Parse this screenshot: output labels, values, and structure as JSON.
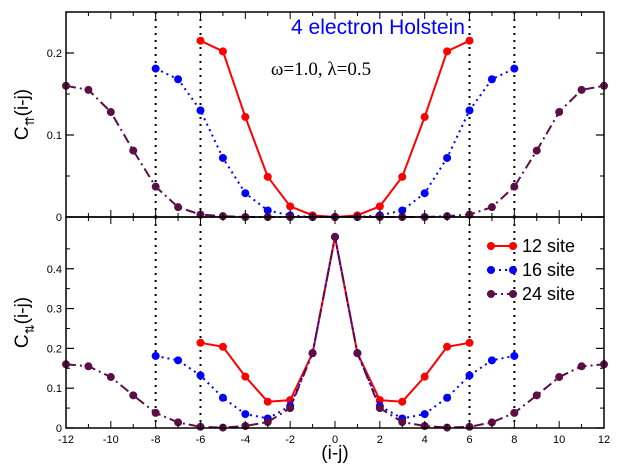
{
  "chart_data": [
    {
      "type": "line",
      "panel": "top",
      "title": "4 electron Holstein",
      "subtitle": "ω=1.0, λ=0.5",
      "ylabel": "C",
      "ylabel_sub": "⇈",
      "ylabel_arg": "(i-j)",
      "ylim": [
        0,
        0.25
      ],
      "xlim": [
        -12,
        12
      ],
      "yticks": [
        0,
        0.1,
        0.2
      ],
      "ytick_labels": [
        "0",
        "0.1",
        "0.2"
      ],
      "vlines": [
        -8,
        -6,
        6,
        8
      ],
      "series": [
        {
          "label": "12 site",
          "color": "#ff0000",
          "dash": "",
          "x": [
            -6,
            -5,
            -4,
            -3,
            -2,
            -1,
            0,
            1,
            2,
            3,
            4,
            5,
            6
          ],
          "y": [
            0.215,
            0.202,
            0.122,
            0.049,
            0.013,
            0.002,
            0.0,
            0.002,
            0.013,
            0.049,
            0.122,
            0.202,
            0.215
          ]
        },
        {
          "label": "16 site",
          "color": "#0000ff",
          "dash": "2 4",
          "x": [
            -8,
            -7,
            -6,
            -5,
            -4,
            -3,
            -2,
            -1,
            0,
            1,
            2,
            3,
            4,
            5,
            6,
            7,
            8
          ],
          "y": [
            0.181,
            0.168,
            0.13,
            0.072,
            0.029,
            0.008,
            0.002,
            0.0,
            0.0,
            0.0,
            0.002,
            0.008,
            0.029,
            0.072,
            0.13,
            0.168,
            0.181
          ]
        },
        {
          "label": "24 site",
          "color": "#5c0e46",
          "dash": "10 4 2 4",
          "x": [
            -12,
            -11,
            -10,
            -9,
            -8,
            -7,
            -6,
            -5,
            -4,
            -3,
            -2,
            -1,
            0,
            1,
            2,
            3,
            4,
            5,
            6,
            7,
            8,
            9,
            10,
            11,
            12
          ],
          "y": [
            0.16,
            0.155,
            0.128,
            0.081,
            0.037,
            0.012,
            0.003,
            0.001,
            0.0,
            0.0,
            0.0,
            0.0,
            0.0,
            0.0,
            0.0,
            0.0,
            0.0,
            0.001,
            0.003,
            0.012,
            0.037,
            0.081,
            0.128,
            0.155,
            0.16
          ]
        }
      ]
    },
    {
      "type": "line",
      "panel": "bottom",
      "ylabel": "C",
      "ylabel_sub": "⇅",
      "ylabel_arg": "(i-j)",
      "xlabel": "(i-j)",
      "ylim": [
        0,
        0.53
      ],
      "xlim": [
        -12,
        12
      ],
      "xticks": [
        -12,
        -10,
        -8,
        -6,
        -4,
        -2,
        0,
        2,
        4,
        6,
        8,
        10,
        12
      ],
      "xtick_labels": [
        "-12",
        "-10",
        "-8",
        "-6",
        "-4",
        "-2",
        "0",
        "2",
        "4",
        "6",
        "8",
        "10",
        "12"
      ],
      "yticks": [
        0,
        0.1,
        0.2,
        0.3,
        0.4
      ],
      "ytick_labels": [
        "0",
        "0.1",
        "0.2",
        "0.3",
        "0.4"
      ],
      "vlines": [
        -8,
        -6,
        6,
        8
      ],
      "legend": {
        "position": "top-right",
        "entries": [
          "12 site",
          "16 site",
          "24 site"
        ]
      },
      "series": [
        {
          "label": "12 site",
          "color": "#ff0000",
          "dash": "",
          "x": [
            -6,
            -5,
            -4,
            -3,
            -2,
            -1,
            0,
            1,
            2,
            3,
            4,
            5,
            6
          ],
          "y": [
            0.214,
            0.204,
            0.129,
            0.066,
            0.07,
            0.188,
            0.48,
            0.188,
            0.07,
            0.066,
            0.129,
            0.204,
            0.214
          ]
        },
        {
          "label": "16 site",
          "color": "#0000ff",
          "dash": "2 4",
          "x": [
            -8,
            -7,
            -6,
            -5,
            -4,
            -3,
            -2,
            -1,
            0,
            1,
            2,
            3,
            4,
            5,
            6,
            7,
            8
          ],
          "y": [
            0.181,
            0.17,
            0.132,
            0.076,
            0.035,
            0.024,
            0.055,
            0.188,
            0.48,
            0.188,
            0.055,
            0.024,
            0.035,
            0.076,
            0.132,
            0.17,
            0.181
          ]
        },
        {
          "label": "24 site",
          "color": "#5c0e46",
          "dash": "10 4 2 4",
          "x": [
            -12,
            -11,
            -10,
            -9,
            -8,
            -7,
            -6,
            -5,
            -4,
            -3,
            -2,
            -1,
            0,
            1,
            2,
            3,
            4,
            5,
            6,
            7,
            8,
            9,
            10,
            11,
            12
          ],
          "y": [
            0.16,
            0.155,
            0.128,
            0.082,
            0.038,
            0.014,
            0.003,
            0.001,
            0.005,
            0.015,
            0.05,
            0.188,
            0.48,
            0.188,
            0.05,
            0.015,
            0.005,
            0.001,
            0.003,
            0.014,
            0.038,
            0.082,
            0.128,
            0.155,
            0.16
          ]
        }
      ]
    }
  ]
}
